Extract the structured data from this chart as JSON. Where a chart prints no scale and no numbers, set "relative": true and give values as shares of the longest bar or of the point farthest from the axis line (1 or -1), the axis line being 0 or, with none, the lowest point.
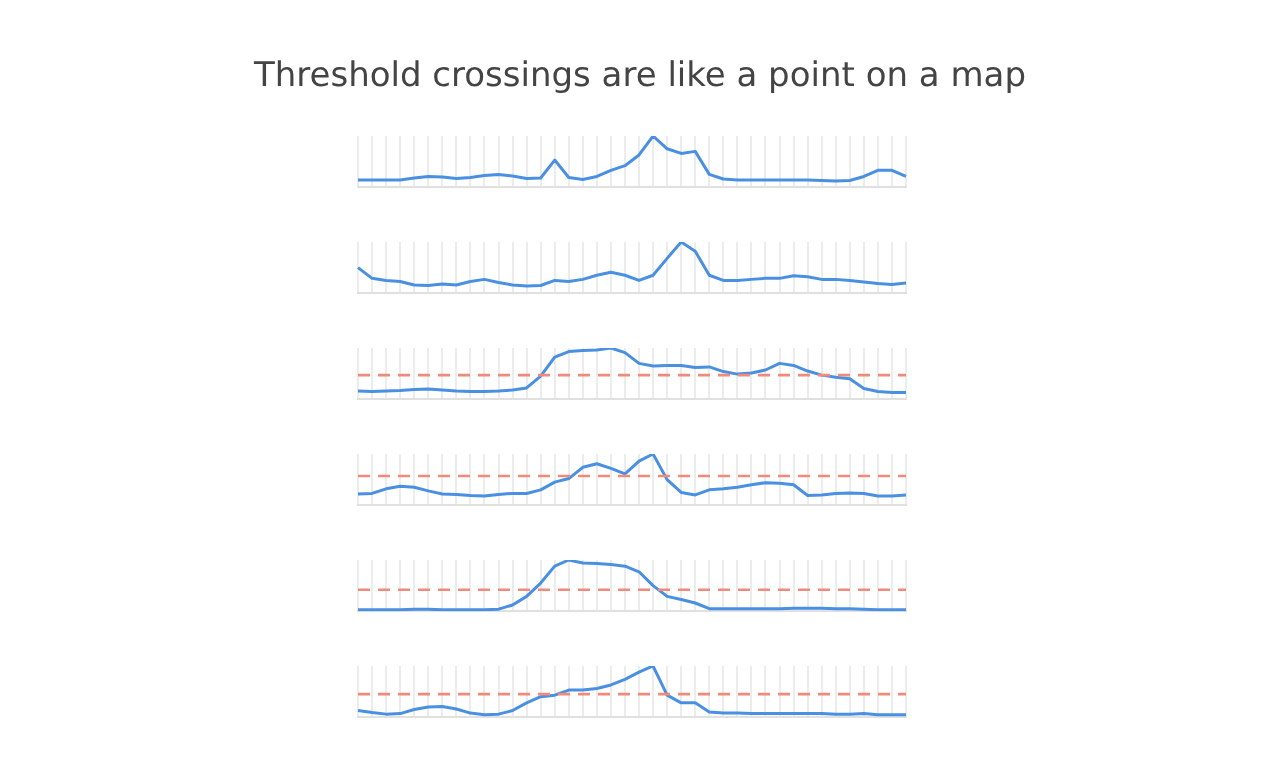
{
  "chart_data": [
    {
      "type": "line",
      "title": "Threshold crossings are like a point on a map",
      "relative": true,
      "categories": [
        null,
        null,
        null,
        null,
        null,
        null,
        null,
        null,
        null,
        null,
        null,
        null,
        null,
        null,
        null,
        null,
        null,
        null,
        null,
        null,
        null,
        null,
        null,
        null,
        null,
        null,
        null,
        null,
        null,
        null,
        null,
        null,
        null,
        null,
        null,
        null,
        null,
        null,
        null,
        null
      ],
      "series": [
        {
          "color": "#4a90e2",
          "values": [
            0.14,
            0.14,
            0.14,
            0.14,
            0.18,
            0.21,
            0.2,
            0.17,
            0.19,
            0.23,
            0.25,
            0.22,
            0.17,
            0.18,
            0.53,
            0.19,
            0.15,
            0.21,
            0.33,
            0.42,
            0.63,
            1,
            0.75,
            0.66,
            0.7,
            0.25,
            0.16,
            0.14,
            0.14,
            0.14,
            0.14,
            0.14,
            0.14,
            0.13,
            0.12,
            0.13,
            0.21,
            0.33,
            0.33,
            0.21
          ]
        }
      ],
      "grid": "x",
      "marker": "none",
      "line_style": "solid"
    },
    {
      "type": "line",
      "relative": true,
      "categories": [
        null,
        null,
        null,
        null,
        null,
        null,
        null,
        null,
        null,
        null,
        null,
        null,
        null,
        null,
        null,
        null,
        null,
        null,
        null,
        null,
        null,
        null,
        null,
        null,
        null,
        null,
        null,
        null,
        null,
        null,
        null,
        null,
        null,
        null,
        null,
        null,
        null,
        null,
        null,
        null
      ],
      "series": [
        {
          "color": "#4a90e2",
          "values": [
            0.5,
            0.29,
            0.25,
            0.23,
            0.16,
            0.15,
            0.18,
            0.16,
            0.23,
            0.27,
            0.21,
            0.16,
            0.14,
            0.15,
            0.25,
            0.23,
            0.27,
            0.35,
            0.41,
            0.35,
            0.25,
            0.35,
            0.68,
            1,
            0.82,
            0.35,
            0.25,
            0.25,
            0.27,
            0.29,
            0.29,
            0.34,
            0.32,
            0.27,
            0.27,
            0.25,
            0.22,
            0.19,
            0.17,
            0.2
          ]
        }
      ],
      "grid": "x",
      "marker": "none",
      "line_style": "solid"
    },
    {
      "type": "line",
      "relative": true,
      "categories": [
        null,
        null,
        null,
        null,
        null,
        null,
        null,
        null,
        null,
        null,
        null,
        null,
        null,
        null,
        null,
        null,
        null,
        null,
        null,
        null,
        null,
        null,
        null,
        null,
        null,
        null,
        null,
        null,
        null,
        null,
        null,
        null,
        null,
        null,
        null,
        null,
        null,
        null,
        null,
        null
      ],
      "series": [
        {
          "color": "#4a90e2",
          "values": [
            0.16,
            0.15,
            0.16,
            0.17,
            0.19,
            0.2,
            0.18,
            0.16,
            0.15,
            0.15,
            0.16,
            0.18,
            0.22,
            0.45,
            0.82,
            0.93,
            0.95,
            0.96,
            1,
            0.91,
            0.7,
            0.65,
            0.66,
            0.66,
            0.62,
            0.63,
            0.54,
            0.49,
            0.51,
            0.57,
            0.7,
            0.66,
            0.55,
            0.47,
            0.43,
            0.4,
            0.21,
            0.15,
            0.13,
            0.13
          ]
        }
      ],
      "ref_lines": [
        {
          "axis": "y",
          "value": 0.47,
          "color": "#f08a7a",
          "line_style": "dashed"
        }
      ],
      "grid": "x",
      "marker": "none",
      "line_style": "solid"
    },
    {
      "type": "line",
      "relative": true,
      "categories": [
        null,
        null,
        null,
        null,
        null,
        null,
        null,
        null,
        null,
        null,
        null,
        null,
        null,
        null,
        null,
        null,
        null,
        null,
        null,
        null,
        null,
        null,
        null,
        null,
        null,
        null,
        null,
        null,
        null,
        null,
        null,
        null,
        null,
        null,
        null,
        null,
        null,
        null,
        null,
        null
      ],
      "series": [
        {
          "color": "#4a90e2",
          "values": [
            0.22,
            0.23,
            0.32,
            0.37,
            0.35,
            0.28,
            0.22,
            0.21,
            0.19,
            0.18,
            0.21,
            0.23,
            0.23,
            0.3,
            0.45,
            0.52,
            0.74,
            0.81,
            0.72,
            0.61,
            0.86,
            1,
            0.5,
            0.25,
            0.2,
            0.3,
            0.32,
            0.35,
            0.4,
            0.44,
            0.43,
            0.4,
            0.19,
            0.2,
            0.23,
            0.24,
            0.23,
            0.18,
            0.18,
            0.2
          ]
        }
      ],
      "ref_lines": [
        {
          "axis": "y",
          "value": 0.57,
          "color": "#f08a7a",
          "line_style": "dashed"
        }
      ],
      "grid": "x",
      "marker": "none",
      "line_style": "solid"
    },
    {
      "type": "line",
      "relative": true,
      "categories": [
        null,
        null,
        null,
        null,
        null,
        null,
        null,
        null,
        null,
        null,
        null,
        null,
        null,
        null,
        null,
        null,
        null,
        null,
        null,
        null,
        null,
        null,
        null,
        null,
        null,
        null,
        null,
        null,
        null,
        null,
        null,
        null,
        null,
        null,
        null,
        null,
        null,
        null,
        null,
        null
      ],
      "series": [
        {
          "color": "#4a90e2",
          "values": [
            0.03,
            0.03,
            0.03,
            0.03,
            0.04,
            0.04,
            0.03,
            0.03,
            0.03,
            0.03,
            0.04,
            0.12,
            0.29,
            0.55,
            0.88,
            1,
            0.94,
            0.93,
            0.91,
            0.88,
            0.77,
            0.5,
            0.29,
            0.23,
            0.16,
            0.05,
            0.05,
            0.05,
            0.05,
            0.05,
            0.05,
            0.06,
            0.06,
            0.06,
            0.05,
            0.05,
            0.04,
            0.03,
            0.03,
            0.03
          ]
        }
      ],
      "ref_lines": [
        {
          "axis": "y",
          "value": 0.42,
          "color": "#f08a7a",
          "line_style": "dashed"
        }
      ],
      "grid": "x",
      "marker": "none",
      "line_style": "solid"
    },
    {
      "type": "line",
      "relative": true,
      "categories": [
        null,
        null,
        null,
        null,
        null,
        null,
        null,
        null,
        null,
        null,
        null,
        null,
        null,
        null,
        null,
        null,
        null,
        null,
        null,
        null,
        null,
        null,
        null,
        null,
        null,
        null,
        null,
        null,
        null,
        null,
        null,
        null,
        null,
        null,
        null,
        null,
        null,
        null,
        null,
        null
      ],
      "series": [
        {
          "color": "#4a90e2",
          "values": [
            0.13,
            0.09,
            0.06,
            0.07,
            0.15,
            0.2,
            0.21,
            0.16,
            0.08,
            0.05,
            0.06,
            0.13,
            0.28,
            0.4,
            0.43,
            0.53,
            0.53,
            0.56,
            0.63,
            0.74,
            0.88,
            1,
            0.43,
            0.28,
            0.28,
            0.1,
            0.08,
            0.08,
            0.07,
            0.07,
            0.07,
            0.07,
            0.07,
            0.07,
            0.06,
            0.06,
            0.07,
            0.05,
            0.05,
            0.05
          ]
        }
      ],
      "ref_lines": [
        {
          "axis": "y",
          "value": 0.45,
          "color": "#f08a7a",
          "line_style": "dashed"
        }
      ],
      "grid": "x",
      "marker": "none",
      "line_style": "solid"
    }
  ]
}
